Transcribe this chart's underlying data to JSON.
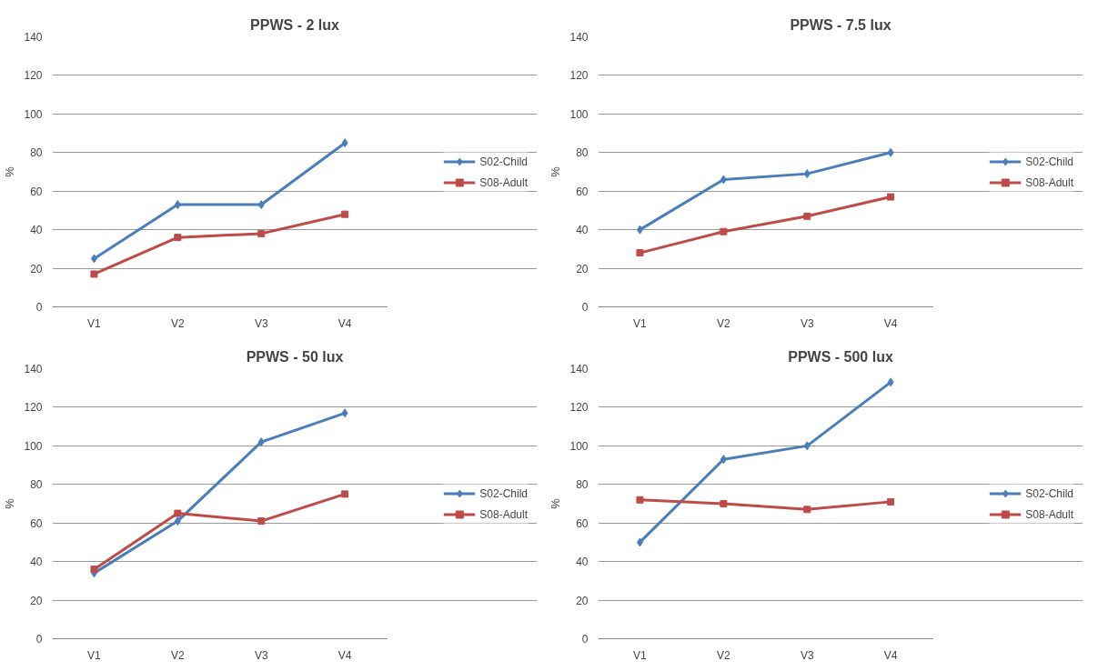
{
  "chart_data": [
    {
      "type": "line",
      "title": "PPWS - 2 lux",
      "ylabel": "%",
      "categories": [
        "V1",
        "V2",
        "V3",
        "V4"
      ],
      "ylim": [
        0,
        140
      ],
      "yticks": [
        0,
        20,
        40,
        60,
        80,
        100,
        120,
        140
      ],
      "grid": "y",
      "legend": "right",
      "series": [
        {
          "name": "S02-Child",
          "color": "#4a7ebb",
          "marker": "diamond",
          "values": [
            25,
            53,
            53,
            85
          ]
        },
        {
          "name": "S08-Adult",
          "color": "#be4b48",
          "marker": "square",
          "values": [
            17,
            36,
            38,
            48
          ]
        }
      ]
    },
    {
      "type": "line",
      "title": "PPWS - 7.5 lux",
      "ylabel": "%",
      "categories": [
        "V1",
        "V2",
        "V3",
        "V4"
      ],
      "ylim": [
        0,
        140
      ],
      "yticks": [
        0,
        20,
        40,
        60,
        80,
        100,
        120,
        140
      ],
      "grid": "y",
      "legend": "right",
      "series": [
        {
          "name": "S02-Child",
          "color": "#4a7ebb",
          "marker": "diamond",
          "values": [
            40,
            66,
            69,
            80
          ]
        },
        {
          "name": "S08-Adult",
          "color": "#be4b48",
          "marker": "square",
          "values": [
            28,
            39,
            47,
            57
          ]
        }
      ]
    },
    {
      "type": "line",
      "title": "PPWS - 50 lux",
      "ylabel": "%",
      "categories": [
        "V1",
        "V2",
        "V3",
        "V4"
      ],
      "ylim": [
        0,
        140
      ],
      "yticks": [
        0,
        20,
        40,
        60,
        80,
        100,
        120,
        140
      ],
      "grid": "y",
      "legend": "right",
      "series": [
        {
          "name": "S02-Child",
          "color": "#4a7ebb",
          "marker": "diamond",
          "values": [
            34,
            61,
            102,
            117
          ]
        },
        {
          "name": "S08-Adult",
          "color": "#be4b48",
          "marker": "square",
          "values": [
            36,
            65,
            61,
            75
          ]
        }
      ]
    },
    {
      "type": "line",
      "title": "PPWS - 500 lux",
      "ylabel": "%",
      "categories": [
        "V1",
        "V2",
        "V3",
        "V4"
      ],
      "ylim": [
        0,
        140
      ],
      "yticks": [
        0,
        20,
        40,
        60,
        80,
        100,
        120,
        140
      ],
      "grid": "y",
      "legend": "right",
      "series": [
        {
          "name": "S02-Child",
          "color": "#4a7ebb",
          "marker": "diamond",
          "values": [
            50,
            93,
            100,
            133
          ]
        },
        {
          "name": "S08-Adult",
          "color": "#be4b48",
          "marker": "square",
          "values": [
            72,
            70,
            67,
            71
          ]
        }
      ]
    }
  ]
}
